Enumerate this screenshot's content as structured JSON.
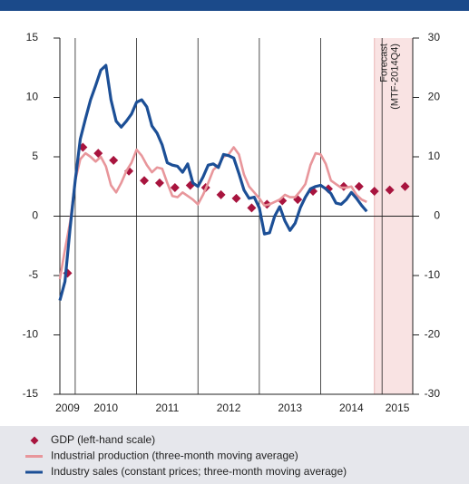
{
  "chart_data": {
    "type": "line",
    "xlim": [
      2009.75,
      2015.5
    ],
    "xticks": [
      {
        "value": 2009.875,
        "label": "2009"
      },
      {
        "value": 2010.5,
        "label": "2010"
      },
      {
        "value": 2011.5,
        "label": "2011"
      },
      {
        "value": 2012.5,
        "label": "2012"
      },
      {
        "value": 2013.5,
        "label": "2013"
      },
      {
        "value": 2014.5,
        "label": "2014"
      },
      {
        "value": 2015.25,
        "label": "2015"
      }
    ],
    "year_lines": [
      2010,
      2011,
      2012,
      2013,
      2014,
      2015
    ],
    "ylim": [
      -15,
      15
    ],
    "yticks": [
      -15,
      -10,
      -5,
      0,
      5,
      10,
      15
    ],
    "y2lim": [
      -30,
      30
    ],
    "y2ticks": [
      -30,
      -20,
      -10,
      0,
      10,
      20,
      30
    ],
    "forecast": {
      "start": 2014.875,
      "label": [
        "Forecast",
        "(MTF-2014Q4)"
      ],
      "color": "#f9e3e3"
    },
    "series": [
      {
        "name": "GDP (left-hand scale)",
        "color": "#a8143e",
        "kind": "diamond",
        "x": [
          2009.875,
          2010.125,
          2010.375,
          2010.625,
          2010.875,
          2011.125,
          2011.375,
          2011.625,
          2011.875,
          2012.125,
          2012.375,
          2012.625,
          2012.875,
          2013.125,
          2013.375,
          2013.625,
          2013.875,
          2014.125,
          2014.375,
          2014.625,
          2014.875,
          2015.125,
          2015.375
        ],
        "values": [
          -4.8,
          5.8,
          5.3,
          4.7,
          3.8,
          3.0,
          2.8,
          2.4,
          2.6,
          2.4,
          1.8,
          1.5,
          0.7,
          1.0,
          1.3,
          1.4,
          2.1,
          2.3,
          2.5,
          2.5,
          2.1,
          2.2,
          2.5
        ]
      },
      {
        "name": "Industrial production (three-month moving average)",
        "color": "#e8969b",
        "kind": "line",
        "axis": "y2",
        "x": [
          2009.75,
          2009.833,
          2009.917,
          2010,
          2010.083,
          2010.167,
          2010.25,
          2010.333,
          2010.417,
          2010.5,
          2010.583,
          2010.667,
          2010.75,
          2010.833,
          2010.917,
          2011,
          2011.083,
          2011.167,
          2011.25,
          2011.333,
          2011.417,
          2011.5,
          2011.583,
          2011.667,
          2011.75,
          2011.833,
          2011.917,
          2012,
          2012.083,
          2012.167,
          2012.25,
          2012.333,
          2012.417,
          2012.5,
          2012.583,
          2012.667,
          2012.75,
          2012.833,
          2012.917,
          2013,
          2013.083,
          2013.167,
          2013.25,
          2013.333,
          2013.417,
          2013.5,
          2013.583,
          2013.667,
          2013.75,
          2013.833,
          2013.917,
          2014,
          2014.083,
          2014.167,
          2014.25,
          2014.333,
          2014.417,
          2014.5,
          2014.583,
          2014.667,
          2014.75
        ],
        "values": [
          -10.6,
          -5.6,
          -1,
          6,
          9.6,
          10.6,
          10,
          9.2,
          10,
          8.4,
          5.2,
          4,
          5.6,
          7.6,
          9,
          11.2,
          10.2,
          8.6,
          7.4,
          8.2,
          8,
          5.6,
          3.4,
          3.2,
          4,
          3.4,
          2.8,
          2,
          3.6,
          5.6,
          7.8,
          8.6,
          10,
          10.4,
          11.6,
          10.4,
          7,
          5,
          4,
          3,
          1.8,
          2,
          2.4,
          2.8,
          3.6,
          3.2,
          3.2,
          4.2,
          5.4,
          8.6,
          10.6,
          10.4,
          8.8,
          6,
          5.4,
          4.8,
          4.8,
          5,
          3.6,
          2.8,
          2.4
        ]
      },
      {
        "name": "Industry sales (constant prices; three-month moving average)",
        "color": "#1c4f96",
        "kind": "line",
        "axis": "y2",
        "x": [
          2009.75,
          2009.833,
          2009.917,
          2010,
          2010.083,
          2010.167,
          2010.25,
          2010.333,
          2010.417,
          2010.5,
          2010.583,
          2010.667,
          2010.75,
          2010.833,
          2010.917,
          2011,
          2011.083,
          2011.167,
          2011.25,
          2011.333,
          2011.417,
          2011.5,
          2011.583,
          2011.667,
          2011.75,
          2011.833,
          2011.917,
          2012,
          2012.083,
          2012.167,
          2012.25,
          2012.333,
          2012.417,
          2012.5,
          2012.583,
          2012.667,
          2012.75,
          2012.833,
          2012.917,
          2013,
          2013.083,
          2013.167,
          2013.25,
          2013.333,
          2013.417,
          2013.5,
          2013.583,
          2013.667,
          2013.75,
          2013.833,
          2013.917,
          2014,
          2014.083,
          2014.167,
          2014.25,
          2014.333,
          2014.417,
          2014.5,
          2014.583,
          2014.667,
          2014.75
        ],
        "values": [
          -14.2,
          -11,
          -2,
          6,
          13,
          16.4,
          19.6,
          22,
          24.6,
          25.4,
          19.6,
          16,
          15,
          16,
          17.2,
          19.2,
          19.6,
          18.4,
          15.2,
          14,
          12,
          9,
          8.6,
          8.4,
          7.4,
          8.8,
          5.6,
          5,
          6.6,
          8.6,
          8.8,
          8.2,
          10.4,
          10.2,
          9.8,
          7.2,
          4.4,
          3,
          3.2,
          1.4,
          -3,
          -2.8,
          0,
          1.6,
          -0.8,
          -2.4,
          -1.2,
          1.4,
          3.2,
          4.6,
          5,
          5.2,
          4.6,
          3.8,
          2.2,
          2,
          2.8,
          4,
          3,
          1.8,
          0.8
        ]
      }
    ]
  }
}
